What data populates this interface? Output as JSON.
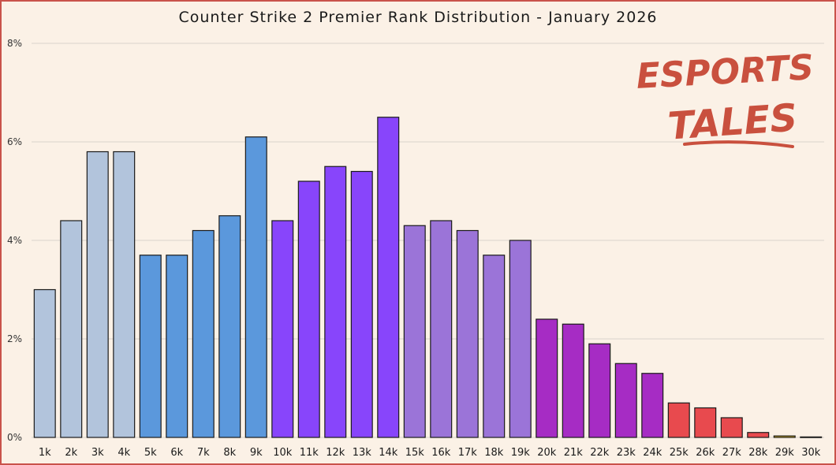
{
  "chart_data": {
    "type": "bar",
    "title": "Counter Strike 2 Premier Rank Distribution - January 2026",
    "xlabel": "",
    "ylabel": "",
    "ylim": [
      0,
      8
    ],
    "yticks": [
      0,
      2,
      4,
      6,
      8
    ],
    "ytick_labels": [
      "0%",
      "2%",
      "4%",
      "6%",
      "8%"
    ],
    "grid": "horizontal",
    "legend": "none",
    "categories": [
      "1k",
      "2k",
      "3k",
      "4k",
      "5k",
      "6k",
      "7k",
      "8k",
      "9k",
      "10k",
      "11k",
      "12k",
      "13k",
      "14k",
      "15k",
      "16k",
      "17k",
      "18k",
      "19k",
      "20k",
      "21k",
      "22k",
      "23k",
      "24k",
      "25k",
      "26k",
      "27k",
      "28k",
      "29k",
      "30k"
    ],
    "values": [
      3.0,
      4.4,
      5.8,
      5.8,
      3.7,
      3.7,
      4.2,
      4.5,
      6.1,
      4.4,
      5.2,
      5.5,
      5.4,
      6.5,
      4.3,
      4.4,
      4.2,
      3.7,
      4.0,
      2.4,
      2.3,
      1.9,
      1.5,
      1.3,
      0.7,
      0.6,
      0.4,
      0.1,
      0.03,
      0.01
    ],
    "bar_colors": [
      "#b2c4dc",
      "#b2c4dc",
      "#b2c4dc",
      "#b2c4dc",
      "#5b98dc",
      "#5b98dc",
      "#5b98dc",
      "#5b98dc",
      "#5b98dc",
      "#8845fb",
      "#8845fb",
      "#8845fb",
      "#8845fb",
      "#8845fb",
      "#9b74d8",
      "#9b74d8",
      "#9b74d8",
      "#9b74d8",
      "#9b74d8",
      "#a62cc4",
      "#a62cc4",
      "#a62cc4",
      "#a62cc4",
      "#a62cc4",
      "#e84a4e",
      "#e84a4e",
      "#e84a4e",
      "#e84a4e",
      "#f0c424",
      "#f0c424"
    ]
  },
  "logo": {
    "line1": "ESPORTS",
    "line2": "TALES",
    "color": "#c9503e"
  },
  "colors": {
    "background": "#fbf1e6",
    "border": "#c9534a",
    "grid": "#d9d4cc"
  }
}
